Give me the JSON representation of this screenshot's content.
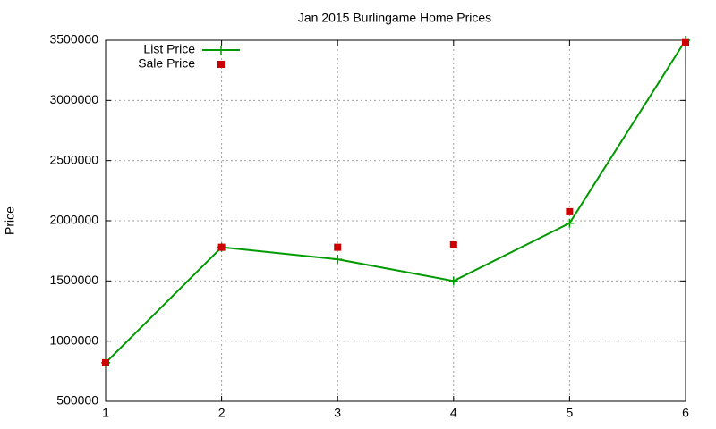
{
  "chart_data": {
    "type": "line",
    "title": "Jan 2015 Burlingame Home Prices",
    "y_label": "Price",
    "x": [
      1,
      2,
      3,
      4,
      5,
      6
    ],
    "series": [
      {
        "name": "List Price",
        "color": "#009a00",
        "mode": "linespoints",
        "values": [
          820000,
          1780000,
          1680000,
          1500000,
          1980000,
          3500000
        ]
      },
      {
        "name": "Sale Price",
        "color": "#cc0000",
        "mode": "points",
        "values": [
          820000,
          1780000,
          1780000,
          1800000,
          2075000,
          3480000
        ]
      }
    ],
    "xlim": [
      1,
      6
    ],
    "xticks": [
      1,
      2,
      3,
      4,
      5,
      6
    ],
    "ylim": [
      500000,
      3500000
    ],
    "yticks": [
      500000,
      1000000,
      1500000,
      2000000,
      2500000,
      3000000,
      3500000
    ],
    "grid": true,
    "legend": "top-left"
  }
}
